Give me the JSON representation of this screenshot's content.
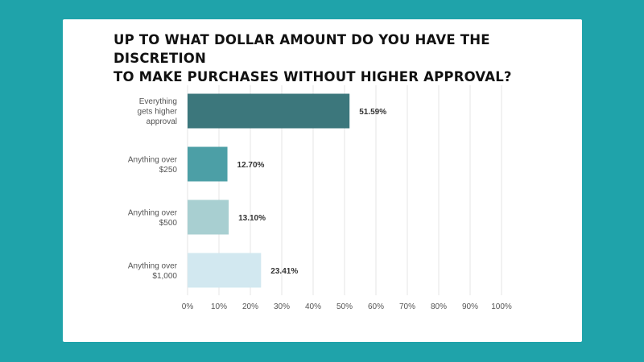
{
  "page": {
    "background": "#1fa3aa",
    "card_background": "#ffffff"
  },
  "chart_data": {
    "type": "bar",
    "orientation": "horizontal",
    "title_lines": [
      "UP TO WHAT DOLLAR AMOUNT DO YOU HAVE THE DISCRETION",
      "TO MAKE PURCHASES WITHOUT HIGHER APPROVAL?"
    ],
    "categories": [
      [
        "Everything",
        "gets higher",
        "approval"
      ],
      [
        "Anything over",
        "$250"
      ],
      [
        "Anything over",
        "$500"
      ],
      [
        "Anything over",
        "$1,000"
      ]
    ],
    "values": [
      51.59,
      12.7,
      13.1,
      23.41
    ],
    "value_labels": [
      "51.59%",
      "12.70%",
      "13.10%",
      "23.41%"
    ],
    "colors": [
      "#3c777c",
      "#4c9fa6",
      "#a8cfd1",
      "#d2e8f0"
    ],
    "xlim": [
      0,
      100
    ],
    "xticks": [
      0,
      10,
      20,
      30,
      40,
      50,
      60,
      70,
      80,
      90,
      100
    ],
    "xtick_labels": [
      "0%",
      "10%",
      "20%",
      "30%",
      "40%",
      "50%",
      "60%",
      "70%",
      "80%",
      "90%",
      "100%"
    ],
    "grid": true,
    "grid_color": "#e4e4e4",
    "xlabel": "",
    "ylabel": ""
  }
}
